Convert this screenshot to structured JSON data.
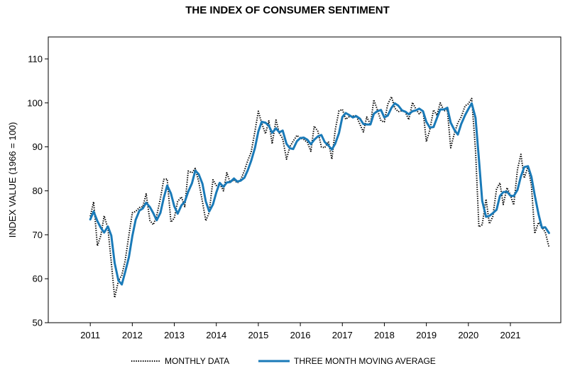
{
  "chart_data": {
    "type": "line",
    "title": "THE INDEX OF CONSUMER SENTIMENT",
    "ylabel": "INDEX VALUE (1966 = 100)",
    "xlabel": "",
    "ylim": [
      50,
      115
    ],
    "xlim": [
      2010.0,
      2022.2
    ],
    "y_ticks": [
      50,
      60,
      70,
      80,
      90,
      100,
      110
    ],
    "x_ticks": [
      2011,
      2012,
      2013,
      2014,
      2015,
      2016,
      2017,
      2018,
      2019,
      2020,
      2021
    ],
    "grid": false,
    "legend_position": "bottom",
    "colors": {
      "monthly": "#000000",
      "moving_average": "#1a7ab8"
    },
    "series": [
      {
        "name": "MONTHLY DATA",
        "style": "dotted",
        "x": [
          2011.0,
          2011.08,
          2011.17,
          2011.25,
          2011.33,
          2011.42,
          2011.5,
          2011.58,
          2011.67,
          2011.75,
          2011.83,
          2011.92,
          2012.0,
          2012.08,
          2012.17,
          2012.25,
          2012.33,
          2012.42,
          2012.5,
          2012.58,
          2012.67,
          2012.75,
          2012.83,
          2012.92,
          2013.0,
          2013.08,
          2013.17,
          2013.25,
          2013.33,
          2013.42,
          2013.5,
          2013.58,
          2013.67,
          2013.75,
          2013.83,
          2013.92,
          2014.0,
          2014.08,
          2014.17,
          2014.25,
          2014.33,
          2014.42,
          2014.5,
          2014.58,
          2014.67,
          2014.75,
          2014.83,
          2014.92,
          2015.0,
          2015.08,
          2015.17,
          2015.25,
          2015.33,
          2015.42,
          2015.5,
          2015.58,
          2015.67,
          2015.75,
          2015.83,
          2015.92,
          2016.0,
          2016.08,
          2016.17,
          2016.25,
          2016.33,
          2016.42,
          2016.5,
          2016.58,
          2016.67,
          2016.75,
          2016.83,
          2016.92,
          2017.0,
          2017.08,
          2017.17,
          2017.25,
          2017.33,
          2017.42,
          2017.5,
          2017.58,
          2017.67,
          2017.75,
          2017.83,
          2017.92,
          2018.0,
          2018.08,
          2018.17,
          2018.25,
          2018.33,
          2018.42,
          2018.5,
          2018.58,
          2018.67,
          2018.75,
          2018.83,
          2018.92,
          2019.0,
          2019.08,
          2019.17,
          2019.25,
          2019.33,
          2019.42,
          2019.5,
          2019.58,
          2019.67,
          2019.75,
          2019.83,
          2019.92,
          2020.0,
          2020.08,
          2020.17,
          2020.25,
          2020.33,
          2020.42,
          2020.5,
          2020.58,
          2020.67,
          2020.75,
          2020.83,
          2020.92,
          2021.0,
          2021.08,
          2021.17,
          2021.25,
          2021.33,
          2021.42,
          2021.5,
          2021.58,
          2021.67,
          2021.75,
          2021.83,
          2021.92
        ],
        "y": [
          74.2,
          77.5,
          67.5,
          69.8,
          74.3,
          71.5,
          63.7,
          55.7,
          59.5,
          60.8,
          64.1,
          69.9,
          75.0,
          75.3,
          76.2,
          76.4,
          79.3,
          73.2,
          72.3,
          74.3,
          78.3,
          82.6,
          82.7,
          72.9,
          73.8,
          77.6,
          78.6,
          76.4,
          84.5,
          84.1,
          85.1,
          82.1,
          77.5,
          73.2,
          75.1,
          82.5,
          81.2,
          81.6,
          80.0,
          84.1,
          81.9,
          82.5,
          81.8,
          82.5,
          84.6,
          86.9,
          88.8,
          93.6,
          98.1,
          95.4,
          93.0,
          95.9,
          90.7,
          96.1,
          93.1,
          91.9,
          87.2,
          90.0,
          91.3,
          92.6,
          92.0,
          91.7,
          91.0,
          89.0,
          94.7,
          93.5,
          90.0,
          89.8,
          91.2,
          87.2,
          93.8,
          98.2,
          98.5,
          96.3,
          96.9,
          97.0,
          97.1,
          95.1,
          93.4,
          96.8,
          95.1,
          100.7,
          98.5,
          95.9,
          95.7,
          99.7,
          101.4,
          98.8,
          98.0,
          98.2,
          97.9,
          96.2,
          100.1,
          98.6,
          97.5,
          98.3,
          91.2,
          93.8,
          98.4,
          97.2,
          100.0,
          98.2,
          98.4,
          89.8,
          93.2,
          95.5,
          96.8,
          99.3,
          99.8,
          101.0,
          89.1,
          71.8,
          72.3,
          78.1,
          72.5,
          74.1,
          80.4,
          81.8,
          76.9,
          80.7,
          79.0,
          76.8,
          84.9,
          88.3,
          82.9,
          85.5,
          81.2,
          70.3,
          72.8,
          71.7,
          70.6,
          67.2
        ]
      },
      {
        "name": "THREE MONTH MOVING AVERAGE",
        "style": "solid",
        "x": [
          2011.0,
          2011.08,
          2011.17,
          2011.25,
          2011.33,
          2011.42,
          2011.5,
          2011.58,
          2011.67,
          2011.75,
          2011.83,
          2011.92,
          2012.0,
          2012.08,
          2012.17,
          2012.25,
          2012.33,
          2012.42,
          2012.5,
          2012.58,
          2012.67,
          2012.75,
          2012.83,
          2012.92,
          2013.0,
          2013.08,
          2013.17,
          2013.25,
          2013.33,
          2013.42,
          2013.5,
          2013.58,
          2013.67,
          2013.75,
          2013.83,
          2013.92,
          2014.0,
          2014.08,
          2014.17,
          2014.25,
          2014.33,
          2014.42,
          2014.5,
          2014.58,
          2014.67,
          2014.75,
          2014.83,
          2014.92,
          2015.0,
          2015.08,
          2015.17,
          2015.25,
          2015.33,
          2015.42,
          2015.5,
          2015.58,
          2015.67,
          2015.75,
          2015.83,
          2015.92,
          2016.0,
          2016.08,
          2016.17,
          2016.25,
          2016.33,
          2016.42,
          2016.5,
          2016.58,
          2016.67,
          2016.75,
          2016.83,
          2016.92,
          2017.0,
          2017.08,
          2017.17,
          2017.25,
          2017.33,
          2017.42,
          2017.5,
          2017.58,
          2017.67,
          2017.75,
          2017.83,
          2017.92,
          2018.0,
          2018.08,
          2018.17,
          2018.25,
          2018.33,
          2018.42,
          2018.5,
          2018.58,
          2018.67,
          2018.75,
          2018.83,
          2018.92,
          2019.0,
          2019.08,
          2019.17,
          2019.25,
          2019.33,
          2019.42,
          2019.5,
          2019.58,
          2019.67,
          2019.75,
          2019.83,
          2019.92,
          2020.0,
          2020.08,
          2020.17,
          2020.25,
          2020.33,
          2020.42,
          2020.5,
          2020.58,
          2020.67,
          2020.75,
          2020.83,
          2020.92,
          2021.0,
          2021.08,
          2021.17,
          2021.25,
          2021.33,
          2021.42,
          2021.5,
          2021.58,
          2021.67,
          2021.75,
          2021.83,
          2021.92
        ],
        "y": [
          73.5,
          75.3,
          73.1,
          71.6,
          70.5,
          71.9,
          69.8,
          63.6,
          59.6,
          58.7,
          61.5,
          64.9,
          69.7,
          73.4,
          75.5,
          76.0,
          77.3,
          76.3,
          74.9,
          73.3,
          75.0,
          78.4,
          81.2,
          79.4,
          76.5,
          74.8,
          76.7,
          77.5,
          79.8,
          81.7,
          84.6,
          83.8,
          81.6,
          77.6,
          75.3,
          76.9,
          79.6,
          81.8,
          80.9,
          81.9,
          82.0,
          82.8,
          82.1,
          82.3,
          83.0,
          84.7,
          86.8,
          89.8,
          93.5,
          95.7,
          95.5,
          94.8,
          93.2,
          94.2,
          93.3,
          93.7,
          90.7,
          89.7,
          89.5,
          91.3,
          92.0,
          92.1,
          91.6,
          90.6,
          91.6,
          92.4,
          92.7,
          91.1,
          90.3,
          89.4,
          90.7,
          93.1,
          96.8,
          97.7,
          97.2,
          96.7,
          97.0,
          96.4,
          95.2,
          95.1,
          95.1,
          97.5,
          98.1,
          98.4,
          96.7,
          97.1,
          98.9,
          99.9,
          99.4,
          98.3,
          98.0,
          97.4,
          98.1,
          98.3,
          98.7,
          98.1,
          95.7,
          94.4,
          94.5,
          96.5,
          98.5,
          98.5,
          98.9,
          95.5,
          93.8,
          92.8,
          95.2,
          97.2,
          98.6,
          99.9,
          96.6,
          87.3,
          77.7,
          74.1,
          74.3,
          74.9,
          75.7,
          78.8,
          79.7,
          79.8,
          78.9,
          78.8,
          80.2,
          83.3,
          85.4,
          85.6,
          83.2,
          79.0,
          74.7,
          71.6,
          71.7,
          70.4
        ]
      }
    ]
  }
}
